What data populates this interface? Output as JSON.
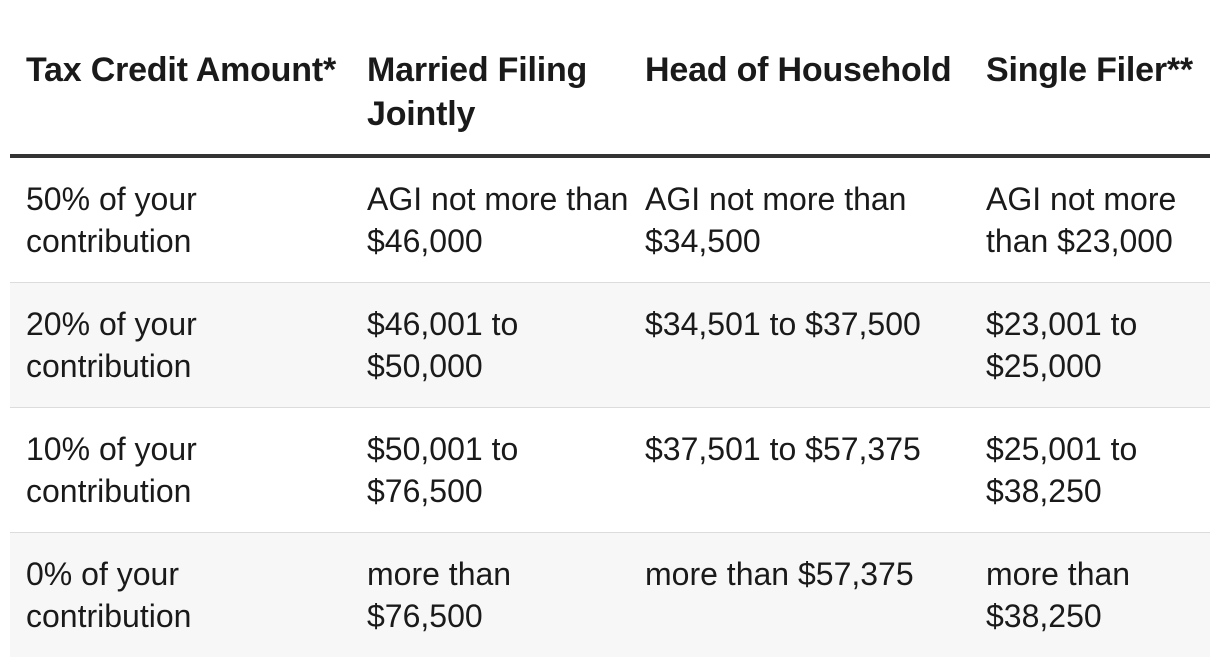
{
  "table": {
    "headers": [
      "Tax Credit Amount*",
      "Married Filing Jointly",
      "Head of Household",
      "Single Filer**"
    ],
    "rows": [
      [
        "50% of your contribution",
        "AGI not more than $46,000",
        "AGI not more than $34,500",
        "AGI not more than $23,000"
      ],
      [
        "20% of your contribution",
        "$46,001 to $50,000",
        "$34,501 to $37,500",
        "$23,001 to $25,000"
      ],
      [
        "10% of your contribution",
        "$50,001 to $76,500",
        "$37,501 to $57,375",
        "$25,001 to $38,250"
      ],
      [
        "0% of your contribution",
        "more than $76,500",
        "more than $57,375",
        "more than $38,250"
      ]
    ]
  }
}
